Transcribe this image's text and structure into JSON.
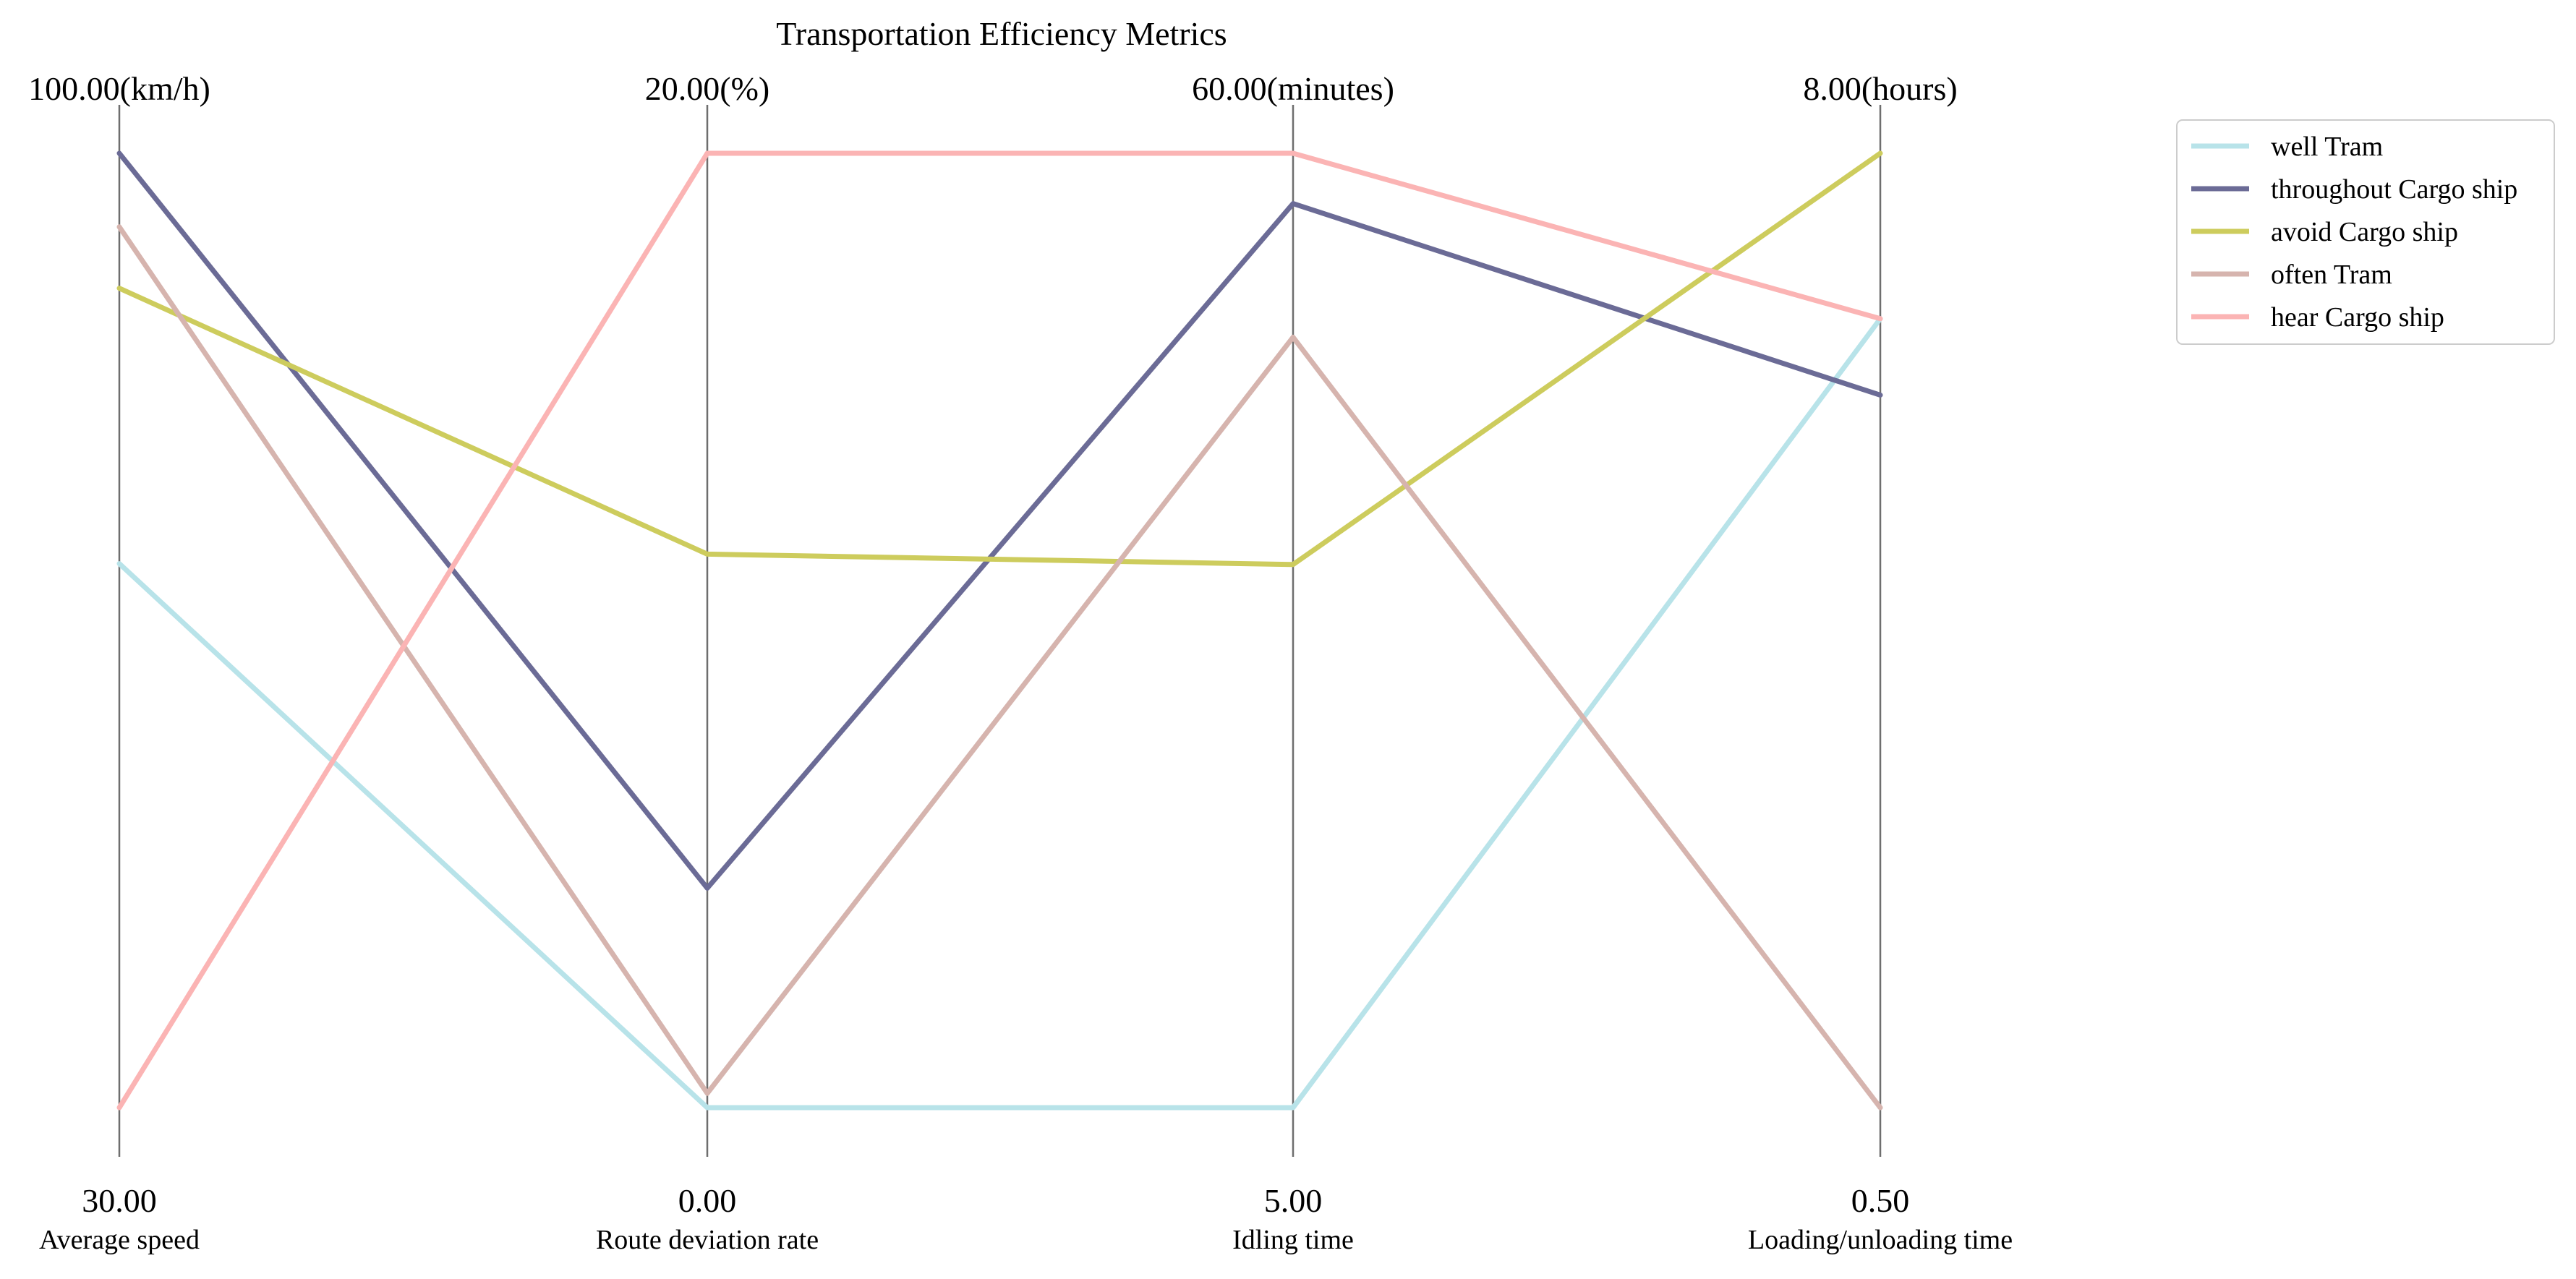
{
  "chart_data": {
    "type": "parallel-coordinates",
    "title": "Transportation Efficiency Metrics",
    "axes": [
      {
        "label": "Average speed",
        "min": 30,
        "max": 100,
        "min_label": "30.00",
        "max_label": "100.00(km/h)"
      },
      {
        "label": "Route deviation rate",
        "min": 0,
        "max": 20,
        "min_label": "0.00",
        "max_label": "20.00(%)"
      },
      {
        "label": "Idling time",
        "min": 5,
        "max": 60,
        "min_label": "5.00",
        "max_label": "60.00(minutes)"
      },
      {
        "label": "Loading/unloading time",
        "min": 0.5,
        "max": 8,
        "min_label": "0.50",
        "max_label": "8.00(hours)"
      }
    ],
    "series": [
      {
        "name": "well Tram",
        "color": "#b8e3e9",
        "values": [
          69.9,
          0.0,
          5.0,
          6.7
        ]
      },
      {
        "name": "throughout Cargo ship",
        "color": "#6b6b96",
        "values": [
          100.0,
          4.6,
          57.1,
          6.1
        ]
      },
      {
        "name": "avoid Cargo ship",
        "color": "#cdcc5d",
        "values": [
          90.1,
          11.6,
          36.3,
          8.0
        ]
      },
      {
        "name": "often Tram",
        "color": "#d6b4ae",
        "values": [
          94.6,
          0.3,
          49.4,
          0.5
        ]
      },
      {
        "name": "hear Cargo ship",
        "color": "#fbb4b4",
        "values": [
          30.0,
          20.0,
          60.0,
          6.7
        ]
      }
    ],
    "legend_position": "top-right",
    "grid": false
  }
}
